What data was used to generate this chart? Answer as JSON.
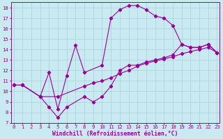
{
  "xlabel": "Windchill (Refroidissement éolien,°C)",
  "background_color": "#c8eaf0",
  "line_color": "#990099",
  "grid_color": "#a8d0dc",
  "line1_x": [
    0,
    1,
    3,
    4,
    5,
    6,
    7,
    8,
    10,
    11,
    12,
    13,
    14,
    15,
    16,
    17,
    18,
    19,
    20,
    21,
    22,
    23
  ],
  "line1_y": [
    10.6,
    10.6,
    9.5,
    11.8,
    8.3,
    11.5,
    14.4,
    11.8,
    12.5,
    17.0,
    17.8,
    18.2,
    18.2,
    17.8,
    17.2,
    17.0,
    16.3,
    14.5,
    14.2,
    14.2,
    14.5,
    13.7
  ],
  "line2_x": [
    0,
    1,
    3,
    4,
    5,
    6,
    8,
    9,
    10,
    11,
    12,
    13,
    14,
    15,
    16,
    17,
    18,
    19,
    20,
    21,
    22,
    23
  ],
  "line2_y": [
    10.6,
    10.6,
    9.5,
    8.5,
    7.5,
    8.5,
    9.5,
    9.0,
    9.5,
    10.5,
    12.0,
    12.5,
    12.5,
    12.8,
    13.0,
    13.2,
    13.5,
    14.5,
    14.2,
    14.2,
    14.5,
    13.7
  ],
  "line3_x": [
    0,
    1,
    3,
    5,
    8,
    9,
    10,
    11,
    12,
    13,
    14,
    15,
    16,
    17,
    18,
    19,
    20,
    21,
    22,
    23
  ],
  "line3_y": [
    10.6,
    10.6,
    9.5,
    9.5,
    10.5,
    10.8,
    11.0,
    11.3,
    11.7,
    12.0,
    12.4,
    12.7,
    12.9,
    13.1,
    13.3,
    13.6,
    13.8,
    14.0,
    14.2,
    13.7
  ],
  "xlim": [
    -0.3,
    23.3
  ],
  "ylim": [
    7,
    18.5
  ],
  "xticks": [
    0,
    1,
    2,
    3,
    4,
    5,
    6,
    7,
    8,
    9,
    10,
    11,
    12,
    13,
    14,
    15,
    16,
    17,
    18,
    19,
    20,
    21,
    22,
    23
  ],
  "yticks": [
    7,
    8,
    9,
    10,
    11,
    12,
    13,
    14,
    15,
    16,
    17,
    18
  ],
  "tick_fontsize": 5.2,
  "xlabel_fontsize": 5.8
}
